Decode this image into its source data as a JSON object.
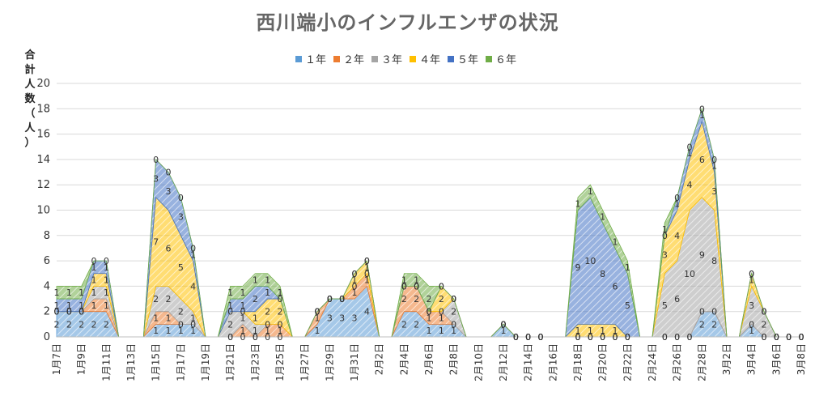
{
  "chart_data": {
    "type": "area",
    "stacked": true,
    "title": "西川端小のインフルエンザの状況",
    "ylabel": "合計人数（人）",
    "ylim": [
      0,
      20
    ],
    "yticks": [
      0,
      2,
      4,
      6,
      8,
      10,
      12,
      14,
      16,
      18,
      20
    ],
    "legend_position": "top",
    "categories": [
      "1月7日",
      "1月8日",
      "1月9日",
      "1月10日",
      "1月11日",
      "1月12日",
      "1月13日",
      "1月14日",
      "1月15日",
      "1月16日",
      "1月17日",
      "1月18日",
      "1月19日",
      "1月20日",
      "1月21日",
      "1月22日",
      "1月23日",
      "1月24日",
      "1月25日",
      "1月26日",
      "1月27日",
      "1月28日",
      "1月29日",
      "1月30日",
      "1月31日",
      "2月1日",
      "2月2日",
      "2月3日",
      "2月4日",
      "2月5日",
      "2月6日",
      "2月7日",
      "2月8日",
      "2月9日",
      "2月10日",
      "2月11日",
      "2月12日",
      "2月13日",
      "2月14日",
      "2月15日",
      "2月16日",
      "2月17日",
      "2月18日",
      "2月19日",
      "2月20日",
      "2月21日",
      "2月22日",
      "2月23日",
      "2月24日",
      "2月25日",
      "2月26日",
      "2月27日",
      "2月28日",
      "3月1日",
      "3月2日",
      "3月3日",
      "3月4日",
      "3月5日",
      "3月6日",
      "3月7日",
      "3月8日"
    ],
    "tick_labels": [
      "1月7日",
      "1月9日",
      "1月11日",
      "1月13日",
      "1月15日",
      "1月17日",
      "1月19日",
      "1月21日",
      "1月23日",
      "1月25日",
      "1月27日",
      "1月29日",
      "1月31日",
      "2月2日",
      "2月4日",
      "2月6日",
      "2月8日",
      "2月10日",
      "2月12日",
      "2月14日",
      "2月16日",
      "2月18日",
      "2月20日",
      "2月22日",
      "2月24日",
      "2月26日",
      "2月28日",
      "3月2日",
      "3月4日",
      "3月6日",
      "3月8日"
    ],
    "series": [
      {
        "name": "１年",
        "color": "#5b9bd5",
        "values": [
          2,
          2,
          2,
          2,
          2,
          null,
          null,
          null,
          1,
          1,
          1,
          1,
          null,
          null,
          0,
          0,
          0,
          0,
          0,
          null,
          null,
          1,
          3,
          3,
          3,
          4,
          null,
          null,
          2,
          2,
          1,
          1,
          1,
          null,
          null,
          null,
          1,
          0,
          0,
          0,
          null,
          null,
          0,
          0,
          0,
          0,
          0,
          null,
          null,
          0,
          0,
          0,
          2,
          2,
          null,
          null,
          1,
          0,
          0,
          0,
          0
        ]
      },
      {
        "name": "２年",
        "color": "#ed7d31",
        "values": [
          0,
          0,
          0,
          1,
          1,
          null,
          null,
          null,
          1,
          1,
          0,
          0,
          null,
          null,
          0,
          1,
          0,
          1,
          1,
          null,
          null,
          1,
          0,
          0,
          1,
          1,
          null,
          null,
          2,
          2,
          1,
          1,
          0,
          null,
          null,
          null,
          0,
          0,
          0,
          0,
          null,
          null,
          0,
          0,
          0,
          0,
          0,
          null,
          null,
          0,
          0,
          0,
          0,
          0,
          null,
          null,
          0,
          0,
          0,
          0,
          0
        ]
      },
      {
        "name": "３年",
        "color": "#a5a5a5",
        "values": [
          0,
          0,
          0,
          1,
          1,
          null,
          null,
          null,
          2,
          2,
          2,
          1,
          null,
          null,
          2,
          1,
          1,
          0,
          0,
          null,
          null,
          0,
          0,
          0,
          0,
          0,
          null,
          null,
          0,
          0,
          0,
          0,
          2,
          null,
          null,
          null,
          0,
          0,
          0,
          0,
          null,
          null,
          0,
          0,
          0,
          0,
          0,
          null,
          null,
          5,
          6,
          10,
          9,
          8,
          null,
          null,
          3,
          2,
          0,
          0,
          0
        ]
      },
      {
        "name": "４年",
        "color": "#ffc000",
        "values": [
          0,
          0,
          0,
          1,
          1,
          null,
          null,
          null,
          7,
          6,
          5,
          4,
          null,
          null,
          0,
          0,
          1,
          2,
          2,
          null,
          null,
          0,
          0,
          0,
          1,
          1,
          null,
          null,
          0,
          0,
          0,
          2,
          0,
          null,
          null,
          null,
          0,
          0,
          0,
          0,
          null,
          null,
          1,
          1,
          1,
          1,
          0,
          null,
          null,
          3,
          4,
          4,
          6,
          3,
          null,
          null,
          1,
          0,
          0,
          0,
          0
        ]
      },
      {
        "name": "５年",
        "color": "#4472c4",
        "values": [
          1,
          1,
          1,
          1,
          1,
          null,
          null,
          null,
          3,
          3,
          3,
          1,
          null,
          null,
          1,
          1,
          2,
          1,
          0,
          null,
          null,
          0,
          0,
          0,
          0,
          0,
          null,
          null,
          0,
          0,
          0,
          0,
          0,
          null,
          null,
          null,
          0,
          0,
          0,
          0,
          null,
          null,
          9,
          10,
          8,
          6,
          5,
          null,
          null,
          0,
          1,
          1,
          1,
          1,
          null,
          null,
          0,
          0,
          0,
          0,
          0
        ]
      },
      {
        "name": "６年",
        "color": "#70ad47",
        "values": [
          1,
          1,
          1,
          0,
          0,
          null,
          null,
          null,
          0,
          0,
          0,
          0,
          null,
          null,
          1,
          1,
          1,
          1,
          1,
          null,
          null,
          0,
          0,
          0,
          0,
          0,
          null,
          null,
          1,
          1,
          2,
          0,
          0,
          null,
          null,
          null,
          0,
          0,
          0,
          0,
          null,
          null,
          1,
          1,
          1,
          1,
          1,
          null,
          null,
          1,
          0,
          0,
          0,
          0,
          null,
          null,
          0,
          0,
          0,
          0,
          0
        ]
      }
    ],
    "label_positions": [
      0,
      1,
      2,
      3,
      4,
      8,
      9,
      10,
      11,
      14,
      15,
      16,
      17,
      18,
      21,
      22,
      23,
      24,
      25,
      28,
      29,
      30,
      31,
      32,
      36,
      37,
      38,
      39,
      42,
      43,
      44,
      45,
      46,
      49,
      50,
      51,
      52,
      53,
      56,
      57,
      58,
      59,
      60
    ]
  }
}
